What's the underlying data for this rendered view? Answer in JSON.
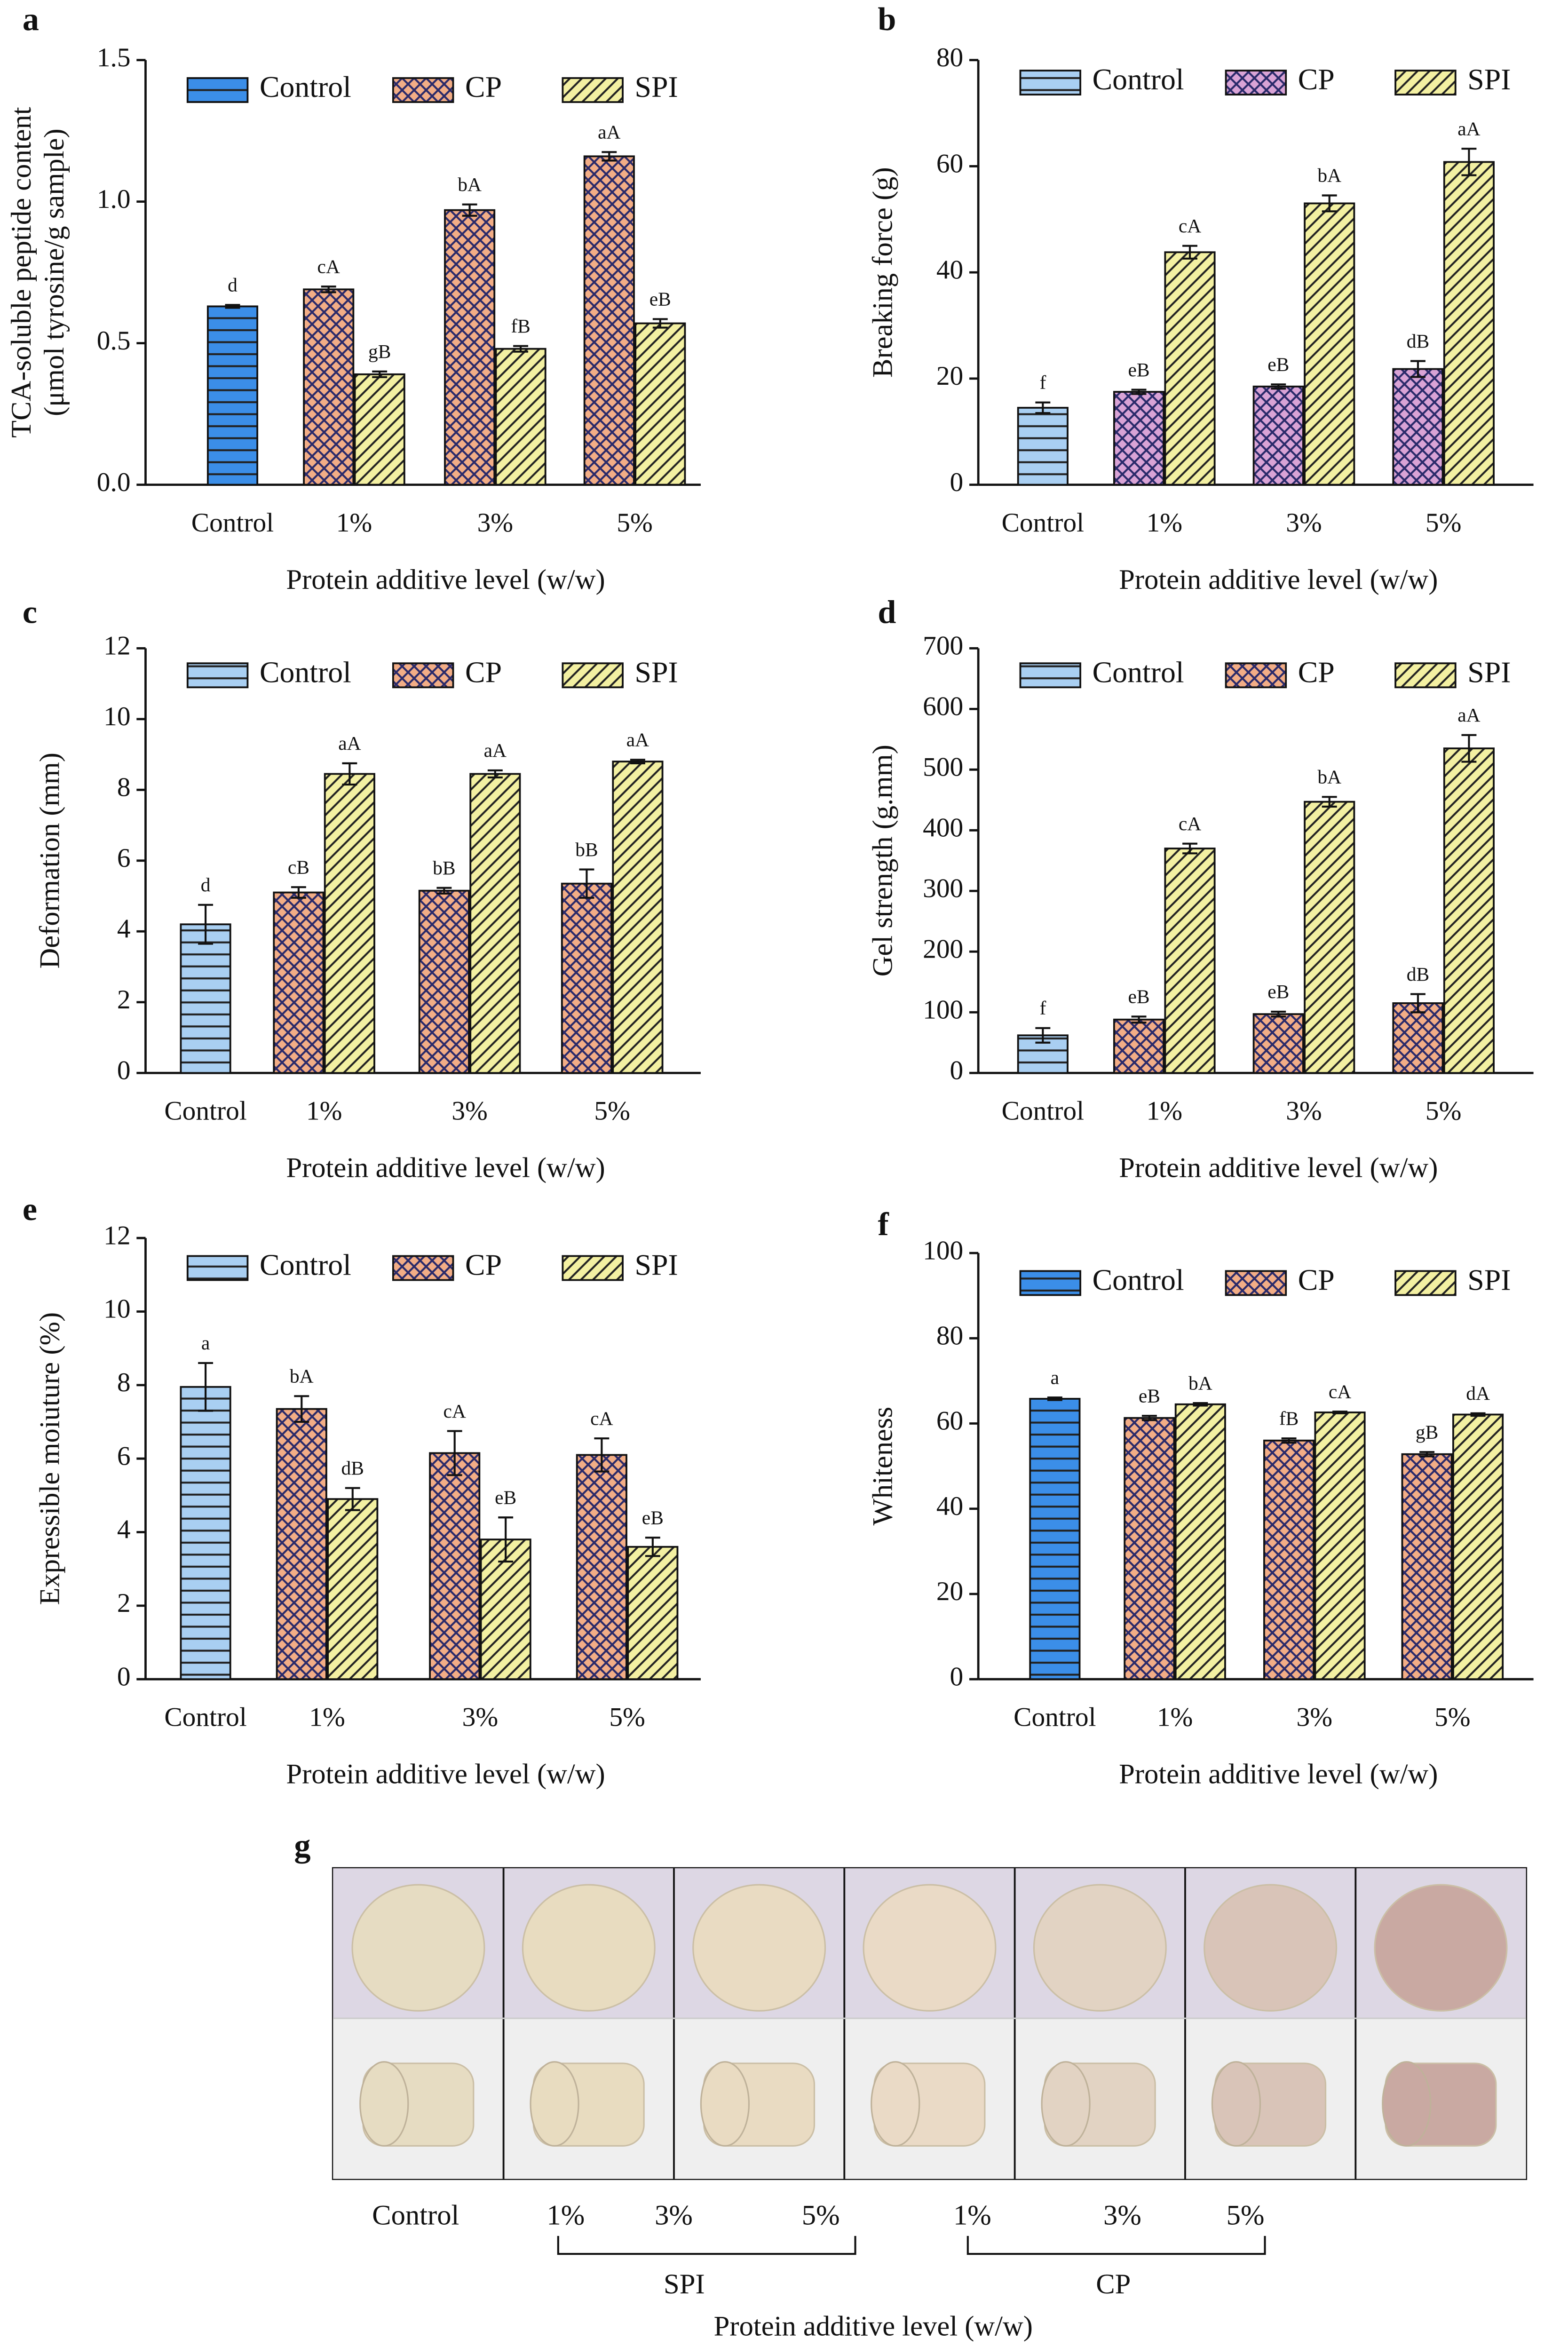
{
  "chart_data": [
    {
      "type": "bar",
      "panel": "a",
      "ylabel": [
        "TCA-soluble peptide content",
        "(μmol tyrosine/g sample)"
      ],
      "xlabel": "Protein additive level (w/w)",
      "categories": [
        "Control",
        "1%",
        "3%",
        "5%"
      ],
      "ylim": [
        0,
        1.5
      ],
      "yticks": [
        {
          "value": 0,
          "label": "0.0"
        },
        0.5,
        {
          "value": 1,
          "label": "1.0"
        },
        1.5
      ],
      "series": [
        {
          "name": "Control",
          "color": "#3b8ee8",
          "values": [
            0.63,
            null,
            null,
            null
          ],
          "errors": [
            0.005,
            null,
            null,
            null
          ],
          "letters": [
            "d",
            null,
            null,
            null
          ]
        },
        {
          "name": "CP",
          "color": "#f2ad86",
          "values": [
            null,
            0.69,
            0.97,
            1.16
          ],
          "errors": [
            null,
            0.01,
            0.02,
            0.015
          ],
          "letters": [
            null,
            "cA",
            "bA",
            "aA"
          ]
        },
        {
          "name": "SPI",
          "color": "#f3f0a2",
          "values": [
            null,
            0.39,
            0.48,
            0.57
          ],
          "errors": [
            null,
            0.01,
            0.01,
            0.015
          ],
          "letters": [
            null,
            "gB",
            "fB",
            "eB"
          ]
        }
      ]
    },
    {
      "type": "bar",
      "panel": "b",
      "ylabel": [
        "Breaking force (g)"
      ],
      "xlabel": "Protein additive level (w/w)",
      "categories": [
        "Control",
        "1%",
        "3%",
        "5%"
      ],
      "ylim": [
        0,
        80
      ],
      "yticks": [
        0,
        20,
        40,
        60,
        80
      ],
      "series": [
        {
          "name": "Control",
          "color": "#a9cff2",
          "values": [
            14.5,
            null,
            null,
            null
          ],
          "errors": [
            1,
            null,
            null,
            null
          ],
          "letters": [
            "f",
            null,
            null,
            null
          ]
        },
        {
          "name": "CP",
          "color": "#d9a3d6",
          "values": [
            null,
            17.5,
            18.5,
            21.8
          ],
          "errors": [
            null,
            0.4,
            0.4,
            1.5
          ],
          "letters": [
            null,
            "eB",
            "eB",
            "dB"
          ]
        },
        {
          "name": "SPI",
          "color": "#f3f0a2",
          "values": [
            null,
            43.8,
            53,
            60.8
          ],
          "errors": [
            null,
            1.2,
            1.5,
            2.5
          ],
          "letters": [
            null,
            "cA",
            "bA",
            "aA"
          ]
        }
      ]
    },
    {
      "type": "bar",
      "panel": "c",
      "ylabel": [
        "Deformation (mm)"
      ],
      "xlabel": "Protein additive level (w/w)",
      "categories": [
        "Control",
        "1%",
        "3%",
        "5%"
      ],
      "ylim": [
        0,
        12
      ],
      "yticks": [
        0,
        2,
        4,
        6,
        8,
        10,
        12
      ],
      "series": [
        {
          "name": "Control",
          "color": "#a9cff2",
          "values": [
            4.2,
            null,
            null,
            null
          ],
          "errors": [
            0.55,
            null,
            null,
            null
          ],
          "letters": [
            "d",
            null,
            null,
            null
          ]
        },
        {
          "name": "CP",
          "color": "#f2ad86",
          "values": [
            null,
            5.1,
            5.15,
            5.35
          ],
          "errors": [
            null,
            0.15,
            0.08,
            0.4
          ],
          "letters": [
            null,
            "cB",
            "bB",
            "bB"
          ]
        },
        {
          "name": "SPI",
          "color": "#f3f0a2",
          "values": [
            null,
            8.45,
            8.45,
            8.8
          ],
          "errors": [
            null,
            0.3,
            0.1,
            0.05
          ],
          "letters": [
            null,
            "aA",
            "aA",
            "aA"
          ]
        }
      ]
    },
    {
      "type": "bar",
      "panel": "d",
      "ylabel": [
        "Gel strength (g.mm)"
      ],
      "xlabel": "Protein additive level (w/w)",
      "categories": [
        "Control",
        "1%",
        "3%",
        "5%"
      ],
      "ylim": [
        0,
        700
      ],
      "yticks": [
        0,
        100,
        200,
        300,
        400,
        500,
        600,
        700
      ],
      "series": [
        {
          "name": "Control",
          "color": "#a9cff2",
          "values": [
            62,
            null,
            null,
            null
          ],
          "errors": [
            12,
            null,
            null,
            null
          ],
          "letters": [
            "f",
            null,
            null,
            null
          ]
        },
        {
          "name": "CP",
          "color": "#f2ad86",
          "values": [
            null,
            88,
            97,
            115
          ],
          "errors": [
            null,
            5,
            4,
            15
          ],
          "letters": [
            null,
            "eB",
            "eB",
            "dB"
          ]
        },
        {
          "name": "SPI",
          "color": "#f3f0a2",
          "values": [
            null,
            370,
            447,
            535
          ],
          "errors": [
            null,
            8,
            8,
            22
          ],
          "letters": [
            null,
            "cA",
            "bA",
            "aA"
          ]
        }
      ]
    },
    {
      "type": "bar",
      "panel": "e",
      "ylabel": [
        "Expressible moiuture (%)"
      ],
      "xlabel": "Protein additive level (w/w)",
      "categories": [
        "Control",
        "1%",
        "3%",
        "5%"
      ],
      "ylim": [
        0,
        12
      ],
      "yticks": [
        0,
        2,
        4,
        6,
        8,
        10,
        12
      ],
      "series": [
        {
          "name": "Control",
          "color": "#a9cff2",
          "values": [
            7.95,
            null,
            null,
            null
          ],
          "errors": [
            0.65,
            null,
            null,
            null
          ],
          "letters": [
            "a",
            null,
            null,
            null
          ]
        },
        {
          "name": "CP",
          "color": "#f2ad86",
          "values": [
            null,
            7.35,
            6.15,
            6.1
          ],
          "errors": [
            null,
            0.35,
            0.6,
            0.45
          ],
          "letters": [
            null,
            "bA",
            "cA",
            "cA"
          ]
        },
        {
          "name": "SPI",
          "color": "#f3f0a2",
          "values": [
            null,
            4.9,
            3.8,
            3.6
          ],
          "errors": [
            null,
            0.3,
            0.6,
            0.25
          ],
          "letters": [
            null,
            "dB",
            "eB",
            "eB"
          ]
        }
      ]
    },
    {
      "type": "bar",
      "panel": "f",
      "ylabel": [
        "Whiteness"
      ],
      "xlabel": "Protein additive level (w/w)",
      "categories": [
        "Control",
        "1%",
        "3%",
        "5%"
      ],
      "ylim": [
        0,
        100
      ],
      "yticks": [
        0,
        20,
        40,
        60,
        80,
        100
      ],
      "series": [
        {
          "name": "Control",
          "color": "#3b8ee8",
          "values": [
            65.8,
            null,
            null,
            null
          ],
          "errors": [
            0.3,
            null,
            null,
            null
          ],
          "letters": [
            "a",
            null,
            null,
            null
          ]
        },
        {
          "name": "CP",
          "color": "#f2ad86",
          "values": [
            null,
            61.3,
            56,
            52.8
          ],
          "errors": [
            null,
            0.5,
            0.5,
            0.5
          ],
          "letters": [
            null,
            "eB",
            "fB",
            "gB"
          ]
        },
        {
          "name": "SPI",
          "color": "#f3f0a2",
          "values": [
            null,
            64.5,
            62.6,
            62.1
          ],
          "errors": [
            null,
            0.3,
            0.2,
            0.3
          ],
          "letters": [
            null,
            "bA",
            "cA",
            "dA"
          ]
        }
      ]
    }
  ],
  "photo_panel": {
    "panel": "g",
    "columns": [
      "Control",
      "1%",
      "3%",
      "5%",
      "1%",
      "3%",
      "5%"
    ],
    "groups": [
      "SPI",
      "CP"
    ],
    "xlabel": "Protein additive level (w/w)"
  }
}
